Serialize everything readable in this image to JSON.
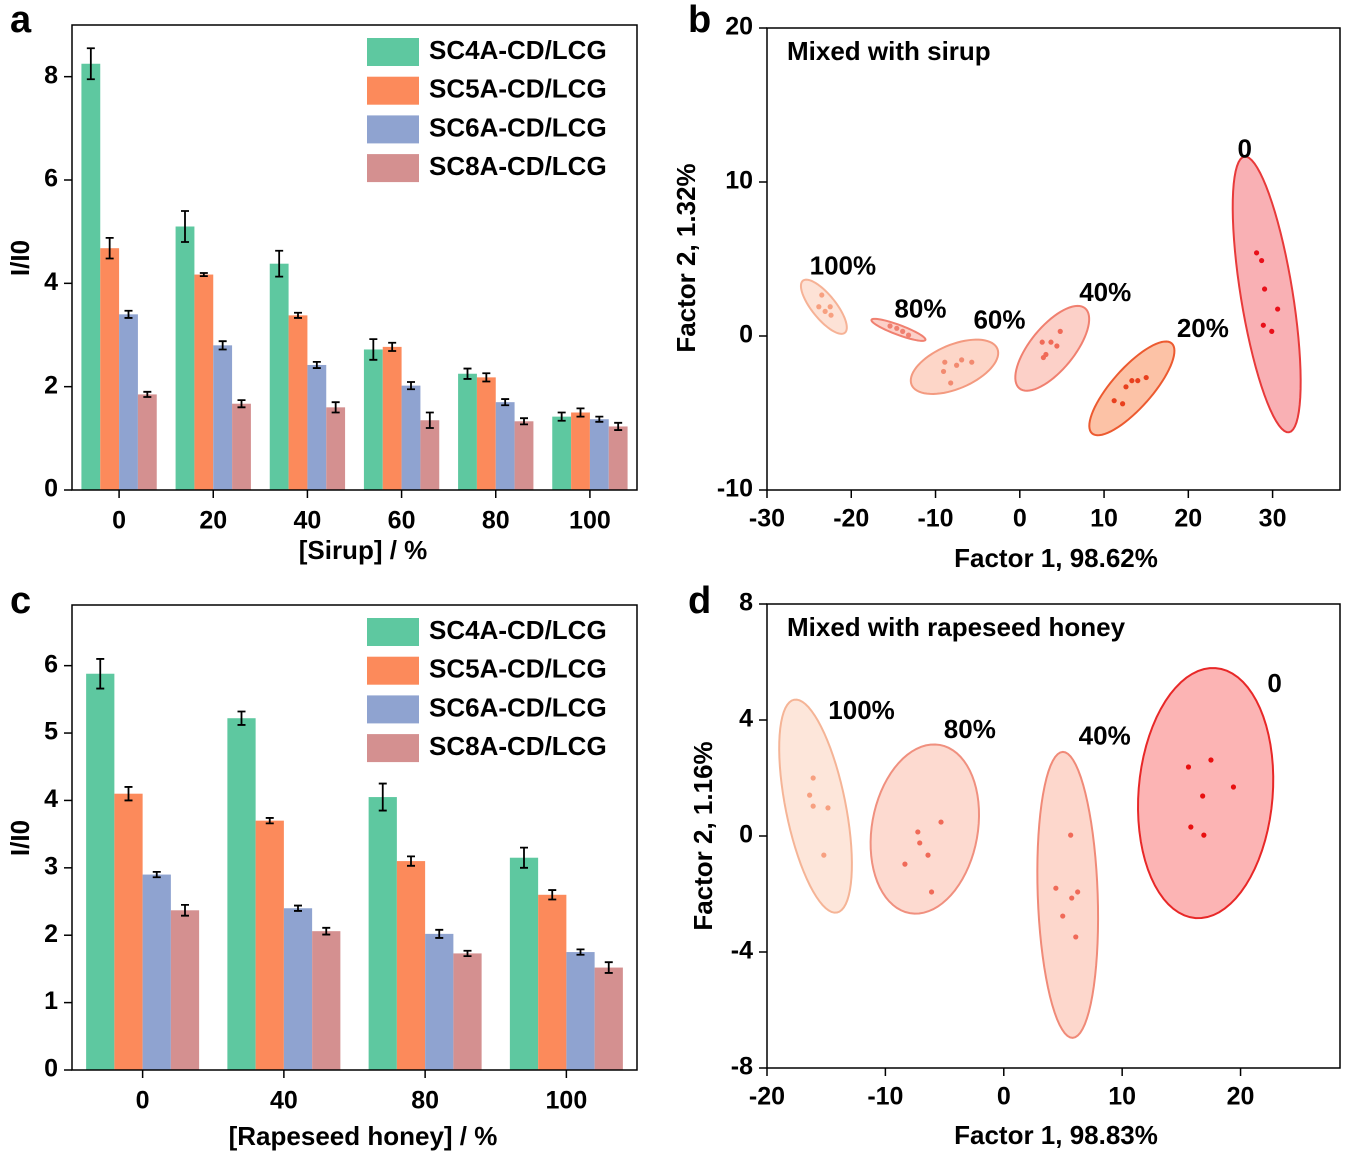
{
  "chart_data": [
    {
      "type": "bar",
      "panel": "a",
      "xlabel": "[Sirup] / %",
      "ylabel": "I/I0",
      "categories": [
        "0",
        "20",
        "40",
        "60",
        "80",
        "100"
      ],
      "ylim": [
        0,
        9
      ],
      "yticks": [
        0,
        2,
        4,
        6,
        8
      ],
      "legend": "upper right",
      "series": [
        {
          "name": "SC4A-CD/LCG",
          "color": "#5ec8a0",
          "values": [
            8.25,
            5.1,
            4.38,
            2.72,
            2.25,
            1.42
          ],
          "errors": [
            0.3,
            0.3,
            0.25,
            0.2,
            0.1,
            0.08
          ]
        },
        {
          "name": "SC5A-CD/LCG",
          "color": "#fc8a5b",
          "values": [
            4.68,
            4.17,
            3.38,
            2.77,
            2.18,
            1.5
          ],
          "errors": [
            0.2,
            0.03,
            0.05,
            0.08,
            0.08,
            0.08
          ]
        },
        {
          "name": "SC6A-CD/LCG",
          "color": "#8fa3d0",
          "values": [
            3.4,
            2.8,
            2.42,
            2.02,
            1.7,
            1.37
          ],
          "errors": [
            0.07,
            0.08,
            0.06,
            0.07,
            0.06,
            0.05
          ]
        },
        {
          "name": "SC8A-CD/LCG",
          "color": "#d49090",
          "values": [
            1.85,
            1.67,
            1.6,
            1.35,
            1.33,
            1.23
          ],
          "errors": [
            0.05,
            0.07,
            0.1,
            0.15,
            0.06,
            0.07
          ]
        }
      ]
    },
    {
      "type": "scatter",
      "panel": "b",
      "title": "Mixed with sirup",
      "xlabel": "Factor 1, 98.62%",
      "ylabel": "Factor 2, 1.32%",
      "xlim": [
        -30,
        38
      ],
      "ylim": [
        -10,
        20
      ],
      "xticks": [
        -30,
        -20,
        -10,
        0,
        10,
        20,
        30
      ],
      "yticks": [
        -10,
        0,
        10,
        20
      ],
      "series": [
        {
          "name": "100%",
          "color": "#f7a080",
          "ellipse_fill": "#fde2d6",
          "ellipse_edge": "#f6b296",
          "x": [
            -23.5,
            -23.85,
            -23.1,
            -22.5,
            -22.4
          ],
          "y": [
            2.66,
            1.9,
            1.6,
            1.9,
            1.35
          ],
          "ellipse": {
            "center": [
              -23.25,
              1.9
            ],
            "axis1": [
              2.49,
              -1.69
            ],
            "axis2": [
              1.1,
              0.49
            ]
          }
        },
        {
          "name": "80%",
          "color": "#f08070",
          "ellipse_fill": "#fcd0c8",
          "ellipse_edge": "#f08070",
          "x": [
            -15.4,
            -14.6,
            -13.9,
            -13.2
          ],
          "y": [
            0.65,
            0.5,
            0.3,
            0.06
          ],
          "ellipse": {
            "center": [
              -14.4,
              0.4
            ],
            "axis1": [
              3.2,
              -0.65
            ],
            "axis2": [
              -0.2,
              -0.3
            ]
          }
        },
        {
          "name": "60%",
          "color": "#f28a70",
          "ellipse_fill": "#fdd6c8",
          "ellipse_edge": "#f39a80",
          "x": [
            -8.9,
            -7.5,
            -6.9,
            -5.7,
            -8.2,
            -9.05
          ],
          "y": [
            -1.7,
            -1.9,
            -1.55,
            -1.7,
            -3.05,
            -2.3
          ],
          "ellipse": {
            "center": [
              -7.75,
              -2.0
            ],
            "axis1": [
              5.09,
              1.17
            ],
            "axis2": [
              1.0,
              -1.32
            ]
          }
        },
        {
          "name": "40%",
          "color": "#f06a58",
          "ellipse_fill": "#fcd0c8",
          "ellipse_edge": "#f08070",
          "x": [
            2.66,
            3.1,
            2.8,
            3.7,
            4.4,
            4.8
          ],
          "y": [
            -0.4,
            -1.2,
            -1.4,
            -0.4,
            -0.65,
            0.3
          ],
          "ellipse": {
            "center": [
              3.85,
              -0.8
            ],
            "axis1": [
              3.9,
              2.6
            ],
            "axis2": [
              2.0,
              -0.91
            ]
          }
        },
        {
          "name": "20%",
          "color": "#e8401e",
          "ellipse_fill": "#fcc2a6",
          "ellipse_edge": "#ec5a30",
          "x": [
            11.2,
            12.2,
            12.6,
            13.3,
            14.0,
            15.0
          ],
          "y": [
            -4.2,
            -4.4,
            -3.3,
            -2.9,
            -2.9,
            -2.7
          ],
          "ellipse": {
            "center": [
              13.3,
              -3.4
            ],
            "axis1": [
              4.73,
              2.92
            ],
            "axis2": [
              1.77,
              -0.86
            ]
          }
        },
        {
          "name": "0",
          "color": "#e8101a",
          "ellipse_fill": "#f9b0b4",
          "ellipse_edge": "#e83a3a",
          "x": [
            28.1,
            28.7,
            29.05,
            30.6,
            28.9,
            29.9
          ],
          "y": [
            5.4,
            4.9,
            3.05,
            1.75,
            0.7,
            0.3
          ],
          "ellipse": {
            "center": [
              29.3,
              2.7
            ],
            "axis1": [
              2.65,
              -8.95
            ],
            "axis2": [
              3.04,
              0.27
            ]
          }
        }
      ]
    },
    {
      "type": "bar",
      "panel": "c",
      "xlabel": "[Rapeseed honey] / %",
      "ylabel": "I/I0",
      "categories": [
        "0",
        "40",
        "80",
        "100"
      ],
      "ylim": [
        0,
        6.9
      ],
      "yticks": [
        0,
        1,
        2,
        3,
        4,
        5,
        6
      ],
      "legend": "upper right",
      "series": [
        {
          "name": "SC4A-CD/LCG",
          "color": "#5ec8a0",
          "values": [
            5.88,
            5.22,
            4.05,
            3.15
          ],
          "errors": [
            0.22,
            0.1,
            0.2,
            0.15
          ]
        },
        {
          "name": "SC5A-CD/LCG",
          "color": "#fc8a5b",
          "values": [
            4.1,
            3.7,
            3.1,
            2.6
          ],
          "errors": [
            0.1,
            0.04,
            0.07,
            0.07
          ]
        },
        {
          "name": "SC6A-CD/LCG",
          "color": "#8fa3d0",
          "values": [
            2.9,
            2.4,
            2.02,
            1.75
          ],
          "errors": [
            0.04,
            0.04,
            0.06,
            0.04
          ]
        },
        {
          "name": "SC8A-CD/LCG",
          "color": "#d49090",
          "values": [
            2.37,
            2.06,
            1.73,
            1.52
          ],
          "errors": [
            0.08,
            0.05,
            0.04,
            0.08
          ]
        }
      ]
    },
    {
      "type": "scatter",
      "panel": "d",
      "title": "Mixed with rapeseed honey",
      "xlabel": "Factor 1, 98.83%",
      "ylabel": "Factor 2, 1.16%",
      "xlim": [
        -20,
        28.4
      ],
      "ylim": [
        -8,
        8
      ],
      "xticks": [
        -20,
        -10,
        0,
        10,
        20
      ],
      "yticks": [
        -8,
        -4,
        0,
        4,
        8
      ],
      "series": [
        {
          "name": "100%",
          "color": "#f7a080",
          "ellipse_fill": "#fde6da",
          "ellipse_edge": "#f5b496",
          "x": [
            -16.1,
            -16.4,
            -16.1,
            -14.85,
            -15.2
          ],
          "y": [
            2.0,
            1.41,
            1.03,
            0.97,
            -0.66
          ],
          "ellipse": {
            "center": [
              -15.9,
              1.03
            ],
            "axis1": [
              1.81,
              -3.67
            ],
            "axis2": [
              2.48,
              0.2
            ]
          }
        },
        {
          "name": "80%",
          "color": "#f06a58",
          "ellipse_fill": "#fddad0",
          "ellipse_edge": "#f0907f",
          "x": [
            -7.26,
            -7.1,
            -6.4,
            -5.3,
            -8.35,
            -6.1
          ],
          "y": [
            0.14,
            -0.24,
            -0.66,
            0.48,
            -0.97,
            -1.93
          ],
          "ellipse": {
            "center": [
              -6.67,
              0.24
            ],
            "axis1": [
              1.27,
              2.9
            ],
            "axis2": [
              4.4,
              -0.32
            ]
          }
        },
        {
          "name": "40%",
          "color": "#f06a58",
          "ellipse_fill": "#fdd7cc",
          "ellipse_edge": "#f08a78",
          "x": [
            5.65,
            4.4,
            5.74,
            6.24,
            4.98,
            6.08
          ],
          "y": [
            0.03,
            -1.8,
            -2.14,
            -1.93,
            -2.76,
            -3.48
          ],
          "ellipse": {
            "center": [
              5.4,
              -2.03
            ],
            "axis1": [
              -0.42,
              4.93
            ],
            "axis2": [
              2.53,
              0.03
            ]
          }
        },
        {
          "name": "0",
          "color": "#e81010",
          "ellipse_fill": "#fcb4b4",
          "ellipse_edge": "#e82828",
          "x": [
            15.6,
            17.5,
            16.8,
            19.4,
            15.8,
            16.9
          ],
          "y": [
            2.38,
            2.62,
            1.38,
            1.69,
            0.31,
            0.03
          ],
          "ellipse": {
            "center": [
              17.05,
              1.48
            ],
            "axis1": [
              0.84,
              4.31
            ],
            "axis2": [
              5.65,
              -0.17
            ]
          }
        }
      ]
    }
  ]
}
